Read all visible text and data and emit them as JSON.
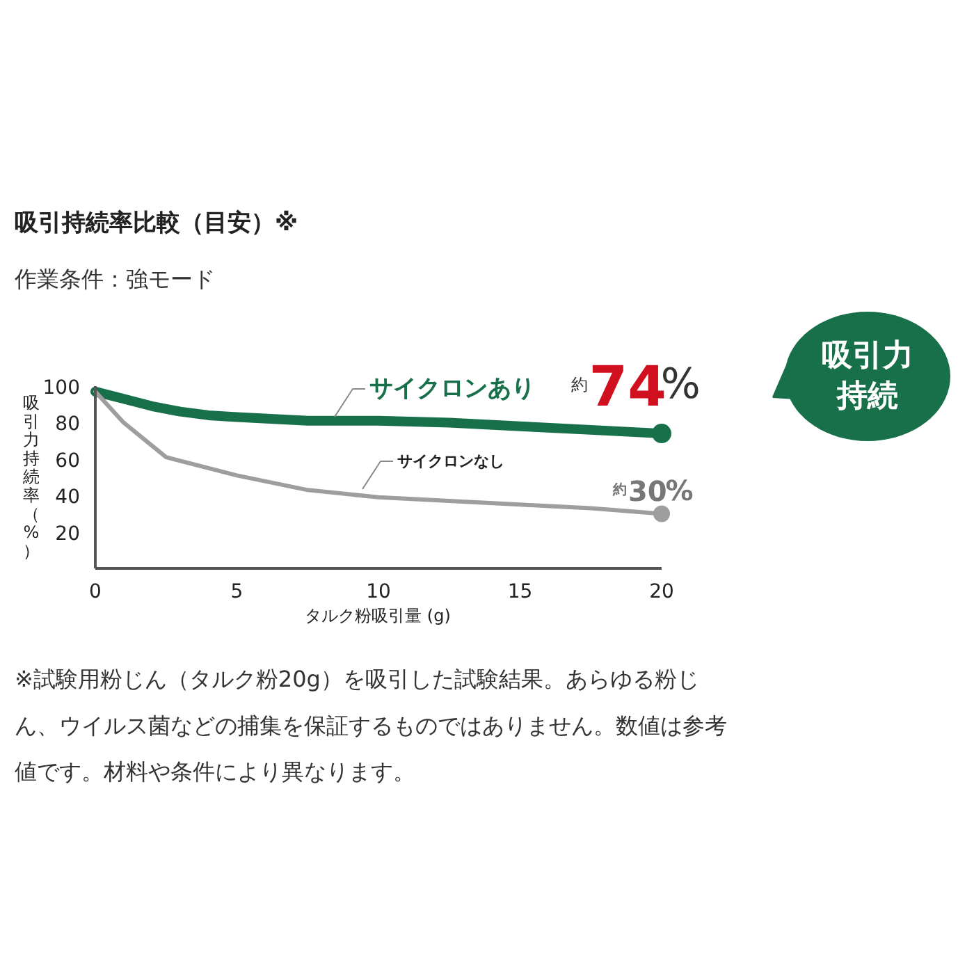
{
  "chart_data": {
    "type": "line",
    "title": "吸引持続率比較（目安）※",
    "subtitle": "作業条件：強モード",
    "xlabel": "タルク粉吸引量 (g)",
    "ylabel": "吸引力持続率（%）",
    "series": [
      {
        "name": "サイクロンあり",
        "color": "#17704a",
        "x": [
          0,
          1,
          2,
          3,
          4,
          5,
          7.5,
          10,
          12.5,
          15,
          17.5,
          20
        ],
        "values": [
          97,
          93,
          89,
          86,
          84,
          83,
          81,
          81,
          80,
          78,
          76,
          74
        ]
      },
      {
        "name": "サイクロンなし",
        "color": "#9e9e9e",
        "x": [
          0,
          1,
          2.5,
          5,
          7.5,
          10,
          12.5,
          15,
          17.5,
          20
        ],
        "values": [
          97,
          80,
          61,
          51,
          43,
          39,
          37,
          35,
          33,
          30
        ]
      }
    ],
    "annotations": [
      {
        "text": "約74%",
        "x": 20,
        "y": 74
      },
      {
        "text": "約30%",
        "x": 20,
        "y": 30
      },
      "吸引力持続",
      "※試験用粉じん（タルク粉20g）を吸引した試験結果。あらゆる粉じん、ウイルス菌などの捕集を保証するものではありません。数値は参考値です。材料や条件により異なります。"
    ],
    "xlim": [
      0,
      20
    ],
    "ylim": [
      0,
      100
    ],
    "xticks": [
      0,
      5,
      10,
      15,
      20
    ],
    "yticks": [
      20,
      40,
      60,
      80,
      100
    ],
    "grid": false,
    "marker": "none",
    "line_style": "solid"
  }
}
